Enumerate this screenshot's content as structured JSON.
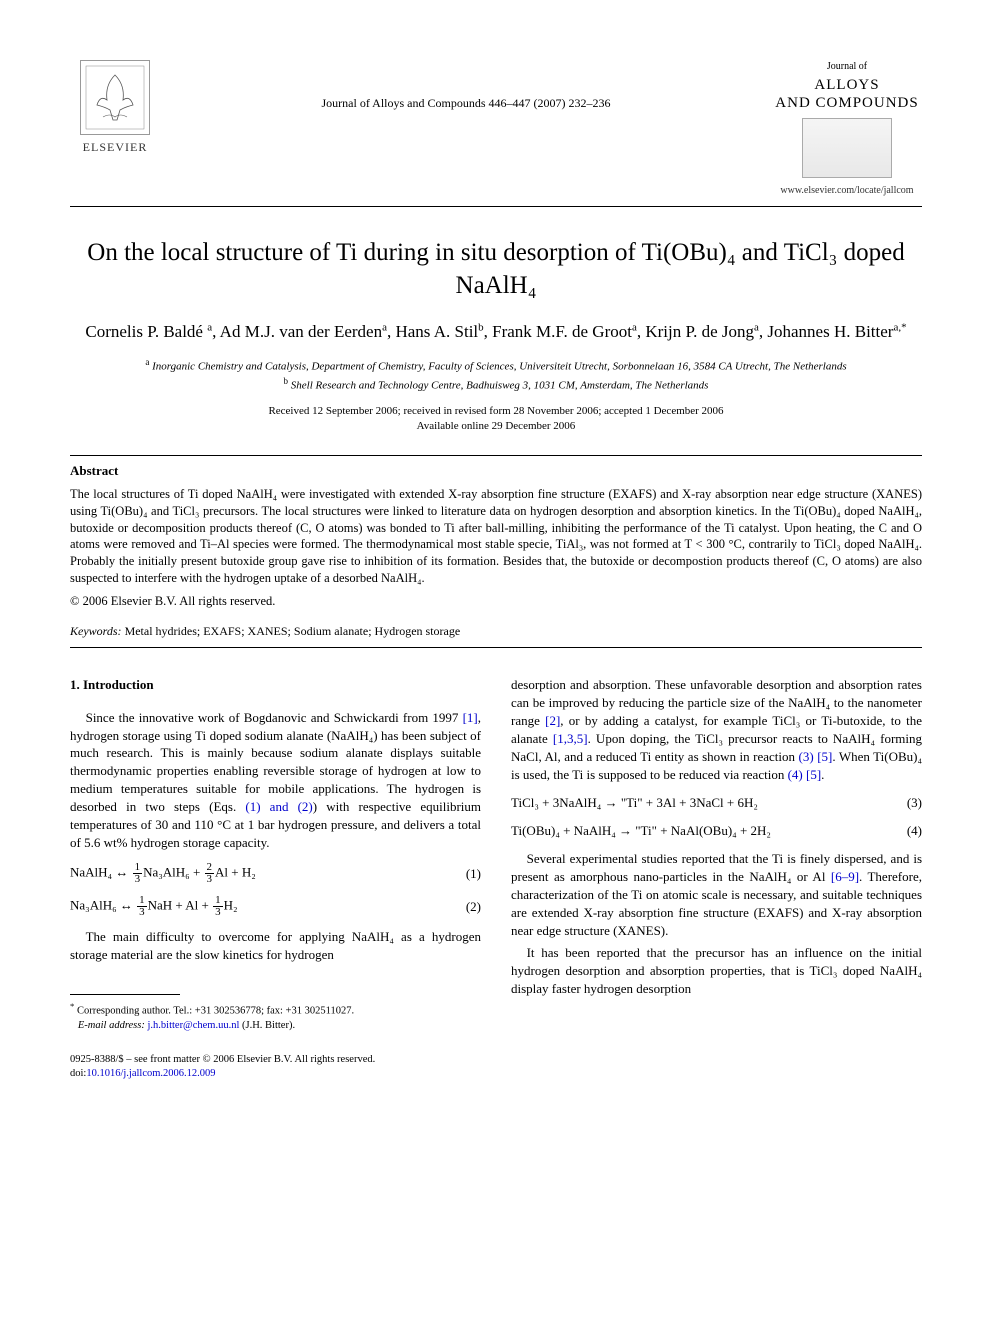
{
  "header": {
    "publisher_name": "ELSEVIER",
    "journal_citation": "Journal of Alloys and Compounds 446–447 (2007) 232–236",
    "journal_brand_top": "Journal of",
    "journal_brand_name": "ALLOYS\nAND COMPOUNDS",
    "journal_url": "www.elsevier.com/locate/jallcom"
  },
  "title": "On the local structure of Ti during in situ desorption of Ti(OBu)₄ and TiCl₃ doped NaAlH₄",
  "authors_html": "Cornelis P. Baldé <sup>a</sup>, Ad M.J. van der Eerden<sup>a</sup>, Hans A. Stil<sup>b</sup>, Frank M.F. de Groot<sup>a</sup>, Krijn P. de Jong<sup>a</sup>, Johannes H. Bitter<sup>a,*</sup>",
  "affiliations": {
    "a": "Inorganic Chemistry and Catalysis, Department of Chemistry, Faculty of Sciences, Universiteit Utrecht, Sorbonnelaan 16, 3584 CA Utrecht, The Netherlands",
    "b": "Shell Research and Technology Centre, Badhuisweg 3, 1031 CM, Amsterdam, The Netherlands"
  },
  "dates": {
    "line1": "Received 12 September 2006; received in revised form 28 November 2006; accepted 1 December 2006",
    "line2": "Available online 29 December 2006"
  },
  "abstract": {
    "heading": "Abstract",
    "body": "The local structures of Ti doped NaAlH₄ were investigated with extended X-ray absorption fine structure (EXAFS) and X-ray absorption near edge structure (XANES) using Ti(OBu)₄ and TiCl₃ precursors. The local structures were linked to literature data on hydrogen desorption and absorption kinetics. In the Ti(OBu)₄ doped NaAlH₄, butoxide or decomposition products thereof (C, O atoms) was bonded to Ti after ball-milling, inhibiting the performance of the Ti catalyst. Upon heating, the C and O atoms were removed and Ti–Al species were formed. The thermodynamical most stable specie, TiAl₃, was not formed at T < 300 °C, contrarily to TiCl₃ doped NaAlH₄. Probably the initially present butoxide group gave rise to inhibition of its formation. Besides that, the butoxide or decompostion products thereof (C, O atoms) are also suspected to interfere with the hydrogen uptake of a desorbed NaAlH₄.",
    "copyright": "© 2006 Elsevier B.V. All rights reserved."
  },
  "keywords": {
    "label": "Keywords:",
    "text": " Metal hydrides; EXAFS; XANES; Sodium alanate; Hydrogen storage"
  },
  "body": {
    "section1_heading": "1. Introduction",
    "col_left": {
      "p1a": "Since the innovative work of Bogdanovic and Schwickardi from 1997 ",
      "ref1": "[1]",
      "p1b": ", hydrogen storage using Ti doped sodium alanate (NaAlH₄) has been subject of much research. This is mainly because sodium alanate displays suitable thermodynamic properties enabling reversible storage of hydrogen at low to medium temperatures suitable for mobile applications. The hydrogen is desorbed in two steps (Eqs. ",
      "eqref1": "(1) and (2)",
      "p1c": ") with respective equilibrium temperatures of 30 and 110 °C at 1 bar hydrogen pressure, and delivers a total of 5.6 wt% hydrogen storage capacity.",
      "eq1": {
        "lhs": "NaAlH₄ ↔ ",
        "f1n": "1",
        "f1d": "3",
        "mid1": "Na₃AlH₆ + ",
        "f2n": "2",
        "f2d": "3",
        "rhs": "Al + H₂",
        "num": "(1)"
      },
      "eq2": {
        "lhs": "Na₃AlH₆ ↔ ",
        "f1n": "1",
        "f1d": "3",
        "mid1": "NaH + Al + ",
        "f2n": "1",
        "f2d": "3",
        "rhs": "H₂",
        "num": "(2)"
      },
      "p2": "The main difficulty to overcome for applying NaAlH₄ as a hydrogen storage material are the slow kinetics for hydrogen"
    },
    "col_right": {
      "p1a": "desorption and absorption. These unfavorable desorption and absorption rates can be improved by reducing the particle size of the NaAlH₄ to the nanometer range ",
      "ref2": "[2]",
      "p1b": ", or by adding a catalyst, for example TiCl₃ or Ti-butoxide, to the alanate ",
      "ref135": "[1,3,5]",
      "p1c": ". Upon doping, the TiCl₃ precursor reacts to NaAlH₄ forming NaCl, Al, and a reduced Ti entity as shown in reaction ",
      "eqref3": "(3)",
      "sp1": " ",
      "ref5a": "[5]",
      "p1d": ". When Ti(OBu)₄ is used, the Ti is supposed to be reduced via reaction ",
      "eqref4": "(4)",
      "sp2": " ",
      "ref5b": "[5]",
      "p1e": ".",
      "eq3": {
        "body": "TiCl₃ + 3NaAlH₄ → \"Ti\"  +  3Al  +  3NaCl  +  6H₂",
        "num": "(3)"
      },
      "eq4": {
        "body": "Ti(OBu)₄ + NaAlH₄ → \"Ti\"  +  NaAl(OBu)₄ + 2H₂",
        "num": "(4)"
      },
      "p2a": "Several experimental studies reported that the Ti is finely dispersed, and is present as amorphous nano-particles in the NaAlH₄ or Al ",
      "ref69": "[6–9]",
      "p2b": ". Therefore, characterization of the Ti on atomic scale is necessary, and suitable techniques are extended X-ray absorption fine structure (EXAFS) and X-ray absorption near edge structure (XANES).",
      "p3": "It has been reported that the precursor has an influence on the initial hydrogen desorption and absorption properties, that is TiCl₃ doped NaAlH₄ display faster hydrogen desorption"
    }
  },
  "footnote": {
    "marker": "*",
    "text": " Corresponding author. Tel.: +31 302536778; fax: +31 302511027.",
    "email_label": "E-mail address:",
    "email": "j.h.bitter@chem.uu.nl",
    "email_tail": " (J.H. Bitter)."
  },
  "bottom": {
    "line1": "0925-8388/$ – see front matter © 2006 Elsevier B.V. All rights reserved.",
    "doi_prefix": "doi:",
    "doi": "10.1016/j.jallcom.2006.12.009"
  }
}
